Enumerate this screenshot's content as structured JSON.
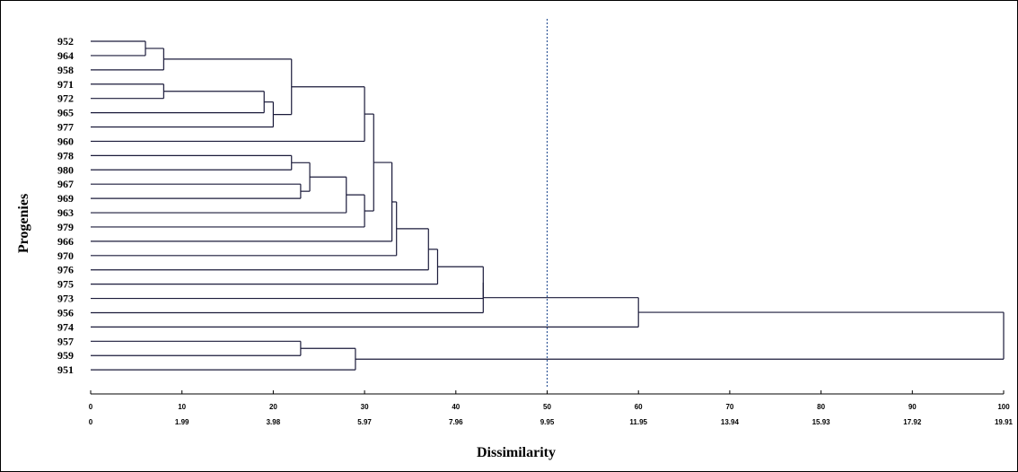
{
  "chart_data": {
    "type": "dendrogram",
    "xlabel": "Dissimilarity",
    "ylabel": "Progenies",
    "xlim": [
      0,
      100
    ],
    "ticks_primary": [
      "0",
      "10",
      "20",
      "30",
      "40",
      "50",
      "60",
      "70",
      "80",
      "90",
      "100"
    ],
    "ticks_secondary": [
      "0",
      "1.99",
      "3.98",
      "5.97",
      "7.96",
      "9.95",
      "11.95",
      "13.94",
      "15.93",
      "17.92",
      "19.91"
    ],
    "cut_line": 50,
    "leaves": [
      "952",
      "964",
      "958",
      "971",
      "972",
      "965",
      "977",
      "960",
      "978",
      "980",
      "967",
      "969",
      "963",
      "979",
      "966",
      "970",
      "976",
      "975",
      "973",
      "956",
      "974",
      "957",
      "959",
      "951"
    ],
    "merges": [
      {
        "a": "952",
        "b": "964",
        "height": 6
      },
      {
        "a": "m0",
        "b": "958",
        "height": 8
      },
      {
        "a": "971",
        "b": "972",
        "height": 8
      },
      {
        "a": "m2",
        "b": "965",
        "height": 19
      },
      {
        "a": "m3",
        "b": "977",
        "height": 20
      },
      {
        "a": "m1",
        "b": "m4",
        "height": 22
      },
      {
        "a": "m5",
        "b": "960",
        "height": 30
      },
      {
        "a": "978",
        "b": "980",
        "height": 22
      },
      {
        "a": "967",
        "b": "969",
        "height": 23
      },
      {
        "a": "m7",
        "b": "m8",
        "height": 24
      },
      {
        "a": "m9",
        "b": "963",
        "height": 28
      },
      {
        "a": "m10",
        "b": "979",
        "height": 30
      },
      {
        "a": "m6",
        "b": "m11",
        "height": 31
      },
      {
        "a": "m12",
        "b": "966",
        "height": 33
      },
      {
        "a": "m13",
        "b": "970",
        "height": 33.5
      },
      {
        "a": "m14",
        "b": "976",
        "height": 37
      },
      {
        "a": "m15",
        "b": "975",
        "height": 38
      },
      {
        "a": "m16",
        "b": "973",
        "height": 43
      },
      {
        "a": "m17",
        "b": "956",
        "height": 43
      },
      {
        "a": "m18",
        "b": "974",
        "height": 60
      },
      {
        "a": "957",
        "b": "959",
        "height": 23
      },
      {
        "a": "m20",
        "b": "951",
        "height": 29
      },
      {
        "a": "m19",
        "b": "m21",
        "height": 100
      }
    ]
  },
  "colors": {
    "branch": "#1a1a3a",
    "cut_line": "#2f5597",
    "text": "#000000"
  }
}
